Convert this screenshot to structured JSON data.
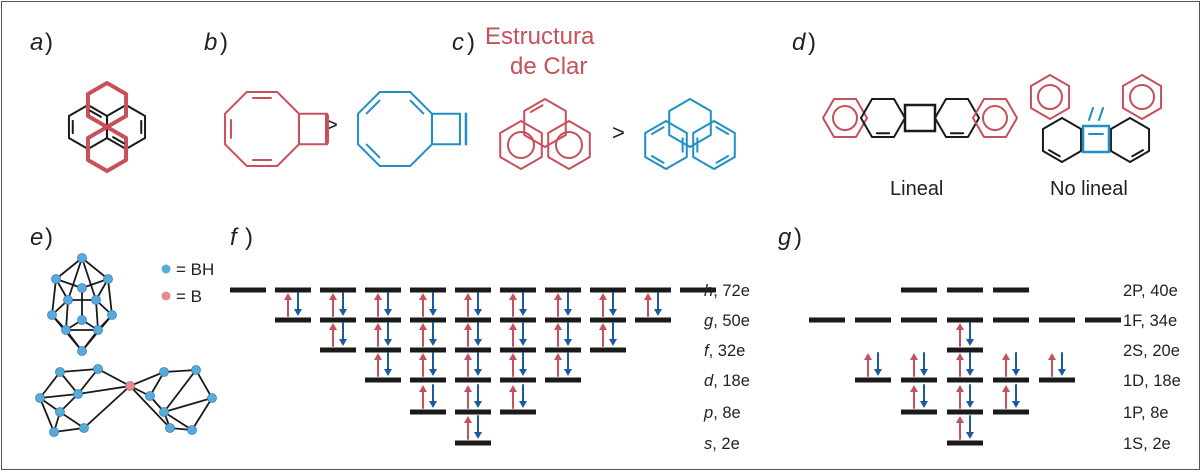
{
  "panels": {
    "a": {
      "label": "a",
      "paren": ")"
    },
    "b": {
      "label": "b",
      "paren": ")",
      "compare": ">"
    },
    "c": {
      "label": "c",
      "paren": ")",
      "title_line1": "Estructura",
      "title_line2": "de Clar",
      "compare": ">"
    },
    "d": {
      "label": "d",
      "paren": ")",
      "left_caption": "Lineal",
      "right_caption": "No lineal"
    },
    "e": {
      "label": "e",
      "paren": ")",
      "legend": [
        {
          "marker": "BH",
          "text": "= BH",
          "color": "#5aa9dc"
        },
        {
          "marker": "B",
          "text": "= B",
          "color": "#e68a8a"
        }
      ]
    },
    "f": {
      "label": "f",
      "paren": ")",
      "levels": [
        {
          "name": "h",
          "suffix": ", 72e",
          "orbitals": 11,
          "filled": false
        },
        {
          "name": "g",
          "suffix": ", 50e",
          "orbitals": 9,
          "filled": true
        },
        {
          "name": "f",
          "suffix": ", 32e",
          "orbitals": 7,
          "filled": true
        },
        {
          "name": "d",
          "suffix": ", 18e",
          "orbitals": 5,
          "filled": true
        },
        {
          "name": "p",
          "suffix": ", 8e",
          "orbitals": 3,
          "filled": true
        },
        {
          "name": "s",
          "suffix": ", 2e",
          "orbitals": 1,
          "filled": true
        }
      ]
    },
    "g": {
      "label": "g",
      "paren": ")",
      "levels": [
        {
          "name": "2P, 40e",
          "orbitals": 3,
          "filled": false
        },
        {
          "name": "1F, 34e",
          "orbitals": 7,
          "filled": false
        },
        {
          "name": "2S, 20e",
          "orbitals": 1,
          "filled": true
        },
        {
          "name": "1D, 18e",
          "orbitals": 5,
          "filled": true
        },
        {
          "name": "1P, 8e",
          "orbitals": 3,
          "filled": true
        },
        {
          "name": "1S, 2e",
          "orbitals": 1,
          "filled": true
        }
      ]
    }
  },
  "colors": {
    "red": "#c8505a",
    "blue": "#1f8fc6",
    "dark_blue": "#1a5a9e",
    "black": "#1a1a1a",
    "bh": "#5aa9dc",
    "b": "#e68a8a"
  }
}
